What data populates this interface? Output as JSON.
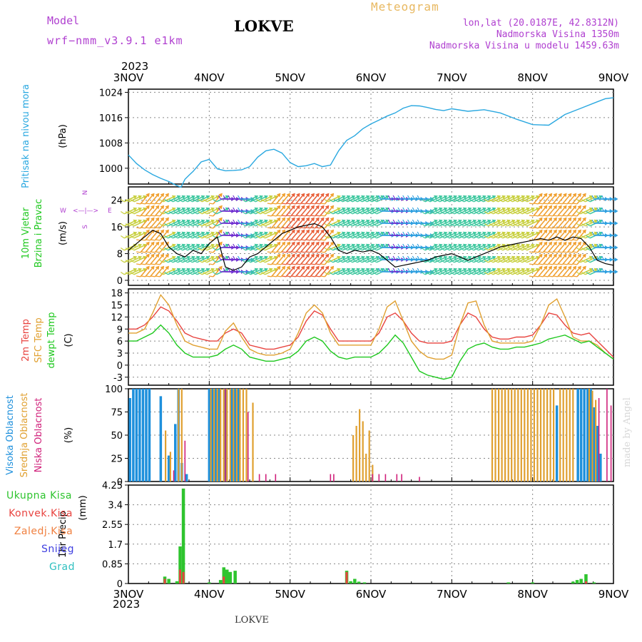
{
  "header": {
    "model_label": "Model",
    "model_name": "wrf−nmm_v3.9.1  e1km",
    "station": "LOKVE",
    "meteogram_label": "Meteogram",
    "lonlat": "lon,lat (20.0187E, 42.8312N)",
    "altitude": "Nadmorska Visina 1350m",
    "model_altitude": "Nadmorska Visina u modelu 1459.63m",
    "year_top": "2023",
    "year_bottom": "2023",
    "footer_station": "LOKVE",
    "watermark": "made by Angel"
  },
  "colors": {
    "pressure": "#2aa8e0",
    "wind_speed": "#000000",
    "temp2m": "#e8433f",
    "sfc_temp": "#e0a030",
    "dewpoint": "#1ec81e",
    "high_cloud": "#1e90dc",
    "mid_cloud": "#e0a030",
    "low_cloud": "#d0207a",
    "total_precip": "#2ec42e",
    "conv_precip": "#e8433f",
    "frozen_precip": "#f08040",
    "snow": "#4040e0",
    "graupel": "#30c0c0",
    "purple_text": "#b040d0",
    "orange_text": "#e8b860"
  },
  "chart_data": [
    {
      "panel": "pressure",
      "type": "line",
      "ylabel_1": "Pritisak na nivou mora",
      "ylabel_2": "(hPa)",
      "yticks": [
        1000,
        1008,
        1016,
        1024
      ],
      "ylim": [
        995,
        1025
      ],
      "grid": true,
      "x": [
        0,
        0.1,
        0.2,
        0.3,
        0.4,
        0.5,
        0.6,
        0.65,
        0.7,
        0.75,
        0.8,
        0.9,
        1.0,
        1.1,
        1.2,
        1.3,
        1.4,
        1.5,
        1.6,
        1.7,
        1.8,
        1.9,
        2.0,
        2.1,
        2.2,
        2.3,
        2.4,
        2.5,
        2.6,
        2.7,
        2.8,
        2.9,
        3.0,
        3.1,
        3.2,
        3.3,
        3.4,
        3.5,
        3.6,
        3.7,
        3.8,
        3.9,
        4.0,
        4.2,
        4.4,
        4.6,
        4.8,
        5.0,
        5.2,
        5.4,
        5.6,
        5.8,
        5.9,
        6.0
      ],
      "values": [
        1004.2,
        1001.5,
        999.5,
        998.0,
        996.8,
        995.8,
        994.5,
        994.0,
        996.5,
        997.8,
        999.0,
        1002.0,
        1002.8,
        999.8,
        999.2,
        999.3,
        999.5,
        1000.5,
        1003.5,
        1005.5,
        1006.0,
        1004.8,
        1001.8,
        1000.5,
        1000.8,
        1001.5,
        1000.5,
        1001.0,
        1005.5,
        1008.8,
        1010.3,
        1012.5,
        1014.0,
        1015.2,
        1016.5,
        1017.5,
        1019.0,
        1019.8,
        1019.7,
        1019.2,
        1018.6,
        1018.2,
        1018.8,
        1018.0,
        1018.5,
        1017.5,
        1015.5,
        1013.8,
        1013.6,
        1017.0,
        1019.0,
        1021.0,
        1022.0,
        1022.3
      ]
    },
    {
      "panel": "wind",
      "type": "line",
      "ylabel_1": "10m Vjetar",
      "ylabel_2": "Brzina i Pravac",
      "ylabel_3": "(m/s)",
      "compass_n": "N",
      "compass_s": "S",
      "compass_e": "E",
      "compass_w": "W",
      "compass_arrows": "<—|—>",
      "yticks": [
        0,
        8,
        16,
        24
      ],
      "ylim": [
        -1.5,
        28
      ],
      "grid": true,
      "x": [
        0,
        0.15,
        0.3,
        0.4,
        0.5,
        0.6,
        0.7,
        0.8,
        0.9,
        1.0,
        1.1,
        1.2,
        1.3,
        1.4,
        1.5,
        1.6,
        1.7,
        1.8,
        1.9,
        2.0,
        2.1,
        2.2,
        2.3,
        2.4,
        2.5,
        2.6,
        2.7,
        2.8,
        2.9,
        3.0,
        3.1,
        3.2,
        3.3,
        3.4,
        3.5,
        3.6,
        3.7,
        3.8,
        3.9,
        4.0,
        4.1,
        4.2,
        4.3,
        4.4,
        4.5,
        4.6,
        4.7,
        4.8,
        4.9,
        5.0,
        5.1,
        5.2,
        5.3,
        5.4,
        5.5,
        5.6,
        5.7,
        5.8,
        5.9,
        6.0
      ],
      "values": [
        9,
        12,
        15,
        14,
        10,
        8,
        7,
        9,
        8,
        11,
        13,
        4,
        3,
        4,
        7,
        8,
        10,
        12,
        14,
        15,
        16,
        16.5,
        17,
        16,
        13,
        9,
        8,
        9,
        8.5,
        9,
        8,
        6,
        4,
        4.5,
        5,
        5.5,
        6,
        7,
        7.5,
        8,
        7,
        6,
        7,
        8,
        9,
        10,
        10.5,
        11,
        11.5,
        12,
        12.5,
        12,
        13,
        12,
        13,
        12.5,
        10,
        6,
        5,
        4.5
      ]
    },
    {
      "panel": "temperature",
      "type": "line",
      "ylabel_1": "2m Temp",
      "ylabel_2": "SFC Temp",
      "ylabel_3": "dewpt Temp",
      "ylabel_4": "(C)",
      "yticks": [
        -3,
        0,
        3,
        6,
        9,
        12,
        15,
        18
      ],
      "ylim": [
        -5,
        19
      ],
      "grid": true,
      "x": [
        0,
        0.1,
        0.2,
        0.3,
        0.4,
        0.5,
        0.6,
        0.7,
        0.8,
        0.9,
        1.0,
        1.1,
        1.2,
        1.3,
        1.4,
        1.5,
        1.6,
        1.7,
        1.8,
        1.9,
        2.0,
        2.1,
        2.2,
        2.3,
        2.4,
        2.5,
        2.6,
        2.7,
        2.8,
        2.9,
        3.0,
        3.1,
        3.2,
        3.3,
        3.4,
        3.5,
        3.6,
        3.7,
        3.8,
        3.9,
        4.0,
        4.1,
        4.2,
        4.3,
        4.4,
        4.5,
        4.6,
        4.7,
        4.8,
        4.9,
        5.0,
        5.1,
        5.2,
        5.3,
        5.4,
        5.5,
        5.6,
        5.7,
        5.8,
        5.9,
        6.0
      ],
      "series": [
        {
          "name": "2m Temp",
          "values": [
            9,
            9,
            10,
            12,
            14.5,
            13.5,
            11,
            8,
            7,
            6.5,
            6,
            6,
            8,
            9,
            8,
            5,
            4.5,
            4,
            4,
            4.5,
            5,
            7,
            11,
            13.5,
            12.5,
            9,
            6,
            6,
            6,
            6,
            6,
            8,
            12,
            13,
            11,
            8,
            6,
            5.5,
            5.5,
            5.5,
            6,
            10,
            13,
            12,
            9,
            7,
            6.5,
            6.5,
            7,
            7,
            7.5,
            10,
            13,
            12.5,
            10,
            8,
            7.5,
            8,
            6,
            4,
            2
          ]
        },
        {
          "name": "SFC Temp",
          "values": [
            8,
            8,
            9,
            13,
            17.5,
            15,
            10,
            6,
            5,
            4.5,
            4,
            4,
            8.5,
            10.5,
            7,
            4,
            3,
            2.5,
            2.5,
            3,
            4,
            8,
            13,
            15,
            13,
            8,
            5,
            5,
            5,
            5,
            5,
            9,
            14.5,
            16,
            11,
            6,
            3.5,
            2,
            1.5,
            1.5,
            2.5,
            10,
            15.5,
            16,
            10,
            6,
            5.5,
            5.5,
            5.5,
            5.5,
            6,
            10,
            15,
            16.5,
            12,
            7,
            6,
            6,
            5,
            3,
            1.5
          ]
        },
        {
          "name": "dewpt Temp",
          "values": [
            6,
            6,
            7,
            8,
            10,
            8,
            5,
            3,
            2,
            2,
            2,
            2.5,
            4,
            5,
            4,
            2,
            1.5,
            1,
            1,
            1.5,
            2,
            3.5,
            6,
            7,
            6,
            3.5,
            2,
            1.5,
            2,
            2,
            2,
            3,
            5,
            7.5,
            5.5,
            2,
            -1.5,
            -2.5,
            -3,
            -3.5,
            -3,
            1,
            4,
            5,
            5.5,
            4.5,
            4,
            4,
            4.5,
            4.5,
            5,
            5.5,
            6.5,
            7,
            7.5,
            6.5,
            5.5,
            6,
            4.5,
            3,
            1.5
          ]
        }
      ]
    },
    {
      "panel": "clouds",
      "type": "bar",
      "ylabel_1": "Visoka Oblacnost",
      "ylabel_2": "Srednja Oblacnost",
      "ylabel_3": "Niska Oblacnost",
      "ylabel_4": "(%)",
      "yticks": [
        0,
        25,
        50,
        75,
        100
      ],
      "ylim": [
        0,
        100
      ],
      "grid": true,
      "series": [
        {
          "name": "Visoka Oblacnost",
          "x": [
            0.02,
            0.06,
            0.1,
            0.14,
            0.18,
            0.22,
            0.26,
            0.4,
            0.5,
            0.58,
            0.62,
            0.66,
            0.72,
            1.0,
            1.04,
            1.08,
            1.12,
            1.2,
            1.28,
            1.32,
            1.36,
            5.3,
            5.56,
            5.6,
            5.64,
            5.68,
            5.72,
            5.76,
            5.8,
            5.84
          ],
          "values": [
            90,
            100,
            100,
            100,
            100,
            100,
            100,
            92,
            28,
            62,
            100,
            20,
            8,
            100,
            100,
            100,
            100,
            100,
            100,
            100,
            100,
            82,
            100,
            100,
            100,
            100,
            100,
            80,
            60,
            30
          ]
        },
        {
          "name": "Srednja Oblacnost",
          "x": [
            0.46,
            0.52,
            0.62,
            0.66,
            1.02,
            1.06,
            1.1,
            1.14,
            1.18,
            1.22,
            1.26,
            1.3,
            1.34,
            1.38,
            1.42,
            1.46,
            1.54,
            2.78,
            2.82,
            2.86,
            2.9,
            2.94,
            2.98,
            3.02,
            4.5,
            4.54,
            4.58,
            4.62,
            4.66,
            4.7,
            4.74,
            4.78,
            4.82,
            4.86,
            4.9,
            4.94,
            4.98,
            5.02,
            5.06,
            5.1,
            5.14,
            5.18,
            5.22,
            5.26,
            5.34,
            5.38,
            5.42,
            5.46,
            5.5,
            5.7,
            5.74,
            5.78
          ],
          "values": [
            55,
            32,
            100,
            100,
            100,
            100,
            100,
            100,
            100,
            100,
            100,
            100,
            100,
            100,
            100,
            100,
            85,
            50,
            60,
            78,
            65,
            30,
            55,
            18,
            100,
            100,
            100,
            100,
            100,
            100,
            100,
            100,
            100,
            100,
            100,
            100,
            100,
            100,
            100,
            100,
            100,
            100,
            100,
            100,
            100,
            100,
            100,
            100,
            100,
            100,
            98,
            88
          ]
        },
        {
          "name": "Niska Oblacnost",
          "x": [
            0.56,
            0.7,
            1.2,
            1.48,
            1.62,
            1.7,
            1.82,
            2.5,
            2.54,
            3.02,
            3.1,
            3.18,
            3.32,
            3.38,
            3.6,
            5.82,
            5.92,
            5.97
          ],
          "values": [
            12,
            44,
            100,
            75,
            8,
            8,
            8,
            8,
            8,
            8,
            8,
            8,
            8,
            8,
            5,
            90,
            100,
            82
          ]
        }
      ]
    },
    {
      "panel": "precipitation",
      "type": "bar",
      "ylabel_1": "1hr Precip",
      "ylabel_2": "(mm)",
      "legend": [
        "Ukupna Kisa",
        "Konvek.Kisa",
        "Zaledj.Kisa",
        "Snijeg",
        "Grad"
      ],
      "yticks": [
        0,
        0.85,
        1.7,
        2.55,
        3.4,
        4.25
      ],
      "ylim": [
        0,
        4.25
      ],
      "grid": true,
      "series": [
        {
          "name": "Ukupna Kisa",
          "x": [
            0.45,
            0.5,
            0.6,
            0.64,
            0.68,
            1.0,
            1.14,
            1.18,
            1.22,
            1.26,
            1.32,
            2.7,
            2.75,
            2.8,
            2.85,
            2.92,
            4.7,
            5.0,
            5.5,
            5.55,
            5.6,
            5.66,
            5.76
          ],
          "values": [
            0.3,
            0.2,
            0.1,
            1.6,
            4.1,
            0.05,
            0.15,
            0.7,
            0.6,
            0.5,
            0.55,
            0.55,
            0.1,
            0.2,
            0.08,
            0.05,
            0.05,
            0.05,
            0.08,
            0.15,
            0.2,
            0.4,
            0.05
          ]
        },
        {
          "name": "Konvek.Kisa",
          "x": [
            0.45,
            0.64,
            0.68,
            1.18,
            2.7,
            5.66
          ],
          "values": [
            0.2,
            0.6,
            0.5,
            0.3,
            0.5,
            0.1
          ]
        }
      ]
    }
  ],
  "x_axis": {
    "ticks": [
      "3NOV",
      "4NOV",
      "5NOV",
      "6NOV",
      "7NOV",
      "8NOV",
      "9NOV"
    ]
  }
}
